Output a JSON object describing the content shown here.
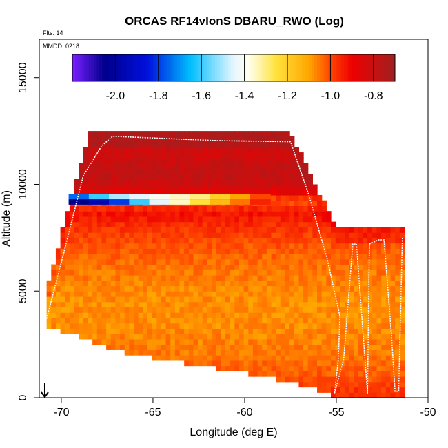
{
  "chart_data": {
    "type": "heatmap",
    "title": "ORCAS RF14vlonS DBARU_RWO (Log)",
    "subtitle_flights": "Flts: 14",
    "subtitle_date": "MMDD: 0218",
    "xlabel": "Longitude (deg E)",
    "ylabel": "Altitude (m)",
    "xlim": [
      -71.2,
      -50
    ],
    "ylim": [
      0,
      16800
    ],
    "x_ticks": [
      -70,
      -65,
      -60,
      -55,
      -50
    ],
    "x_tick_labels": [
      "-70",
      "-65",
      "-60",
      "-55",
      "-50"
    ],
    "y_ticks": [
      0,
      5000,
      10000,
      15000
    ],
    "y_tick_labels": [
      "0",
      "5000",
      "10000",
      "15000"
    ],
    "colorbar": {
      "range": [
        -2.2,
        -0.7
      ],
      "ticks": [
        -2.0,
        -1.8,
        -1.6,
        -1.4,
        -1.2,
        -1.0,
        -0.8
      ],
      "tick_labels": [
        "-2.0",
        "-1.8",
        "-1.6",
        "-1.4",
        "-1.2",
        "-1.0",
        "-0.8"
      ],
      "stops": [
        {
          "v": -2.2,
          "c": "#7a1fff"
        },
        {
          "v": -2.05,
          "c": "#00008b"
        },
        {
          "v": -1.85,
          "c": "#0010dd"
        },
        {
          "v": -1.65,
          "c": "#00bfff"
        },
        {
          "v": -1.45,
          "c": "#e6f6ff"
        },
        {
          "v": -1.38,
          "c": "#ffffee"
        },
        {
          "v": -1.25,
          "c": "#ffe23a"
        },
        {
          "v": -1.1,
          "c": "#ffa500"
        },
        {
          "v": -1.0,
          "c": "#ff4500"
        },
        {
          "v": -0.9,
          "c": "#ee0000"
        },
        {
          "v": -0.7,
          "c": "#a02020"
        }
      ]
    },
    "envelope": {
      "lon": [
        -70.8,
        -68.5,
        -67.0,
        -57.5,
        -55.0,
        -51.3,
        -51.3
      ],
      "top": [
        5000,
        12300,
        12300,
        12300,
        7800,
        7800,
        7600
      ],
      "bottom": [
        3500,
        2800,
        2300,
        900,
        200,
        200,
        200
      ]
    },
    "layers": [
      {
        "alt": 0,
        "value": -0.95
      },
      {
        "alt": 1000,
        "value": -1.02
      },
      {
        "alt": 2000,
        "value": -1.05
      },
      {
        "alt": 3000,
        "value": -1.07
      },
      {
        "alt": 4000,
        "value": -1.08
      },
      {
        "alt": 5000,
        "value": -1.07
      },
      {
        "alt": 6000,
        "value": -1.05
      },
      {
        "alt": 7000,
        "value": -1.02
      },
      {
        "alt": 7800,
        "value": -0.98
      },
      {
        "alt": 8300,
        "value": -0.95
      },
      {
        "alt": 8700,
        "value": -0.92
      },
      {
        "alt": 9000,
        "value": -0.98
      },
      {
        "alt": 9300,
        "value": -1.02
      },
      {
        "alt": 9600,
        "value": -0.88
      },
      {
        "alt": 10000,
        "value": -0.82
      },
      {
        "alt": 10500,
        "value": -0.78
      },
      {
        "alt": 11000,
        "value": -0.8
      },
      {
        "alt": 11500,
        "value": -0.83
      },
      {
        "alt": 12000,
        "value": -0.78
      }
    ],
    "special_bands": [
      {
        "alt_low": 9300,
        "alt_high": 9550,
        "lon_start": -69.6,
        "lon_end": -58.6,
        "values": [
          -1.75,
          -1.6,
          -1.5,
          -1.45,
          -1.4,
          -1.35,
          -1.3,
          -1.2,
          -1.1,
          -1.0
        ]
      },
      {
        "alt_low": 9050,
        "alt_high": 9300,
        "lon_start": -69.6,
        "lon_end": -58.6,
        "values": [
          -2.05,
          -1.95,
          -1.8,
          -1.6,
          -1.45,
          -1.35,
          -1.25,
          -1.15,
          -1.05,
          -0.95
        ]
      }
    ],
    "flight_track": {
      "lon": [
        -70.8,
        -69.8,
        -68.8,
        -67.8,
        -67.2,
        -61.5,
        -57.5,
        -56.5,
        -55.5,
        -54.8,
        -54.9,
        -55.1,
        -54.6,
        -54.1,
        -53.9,
        -53.3,
        -53.2,
        -52.7,
        -52.4,
        -52.0,
        -51.8,
        -51.6,
        -51.4
      ],
      "alt": [
        3700,
        7000,
        10400,
        11800,
        12250,
        12050,
        12000,
        9500,
        6500,
        3800,
        1700,
        200,
        1800,
        7200,
        7200,
        200,
        7200,
        7400,
        7400,
        3000,
        300,
        300,
        7500
      ]
    },
    "marker": {
      "lon": -70.9,
      "alt": 0,
      "symbol": "arrow-down"
    }
  }
}
